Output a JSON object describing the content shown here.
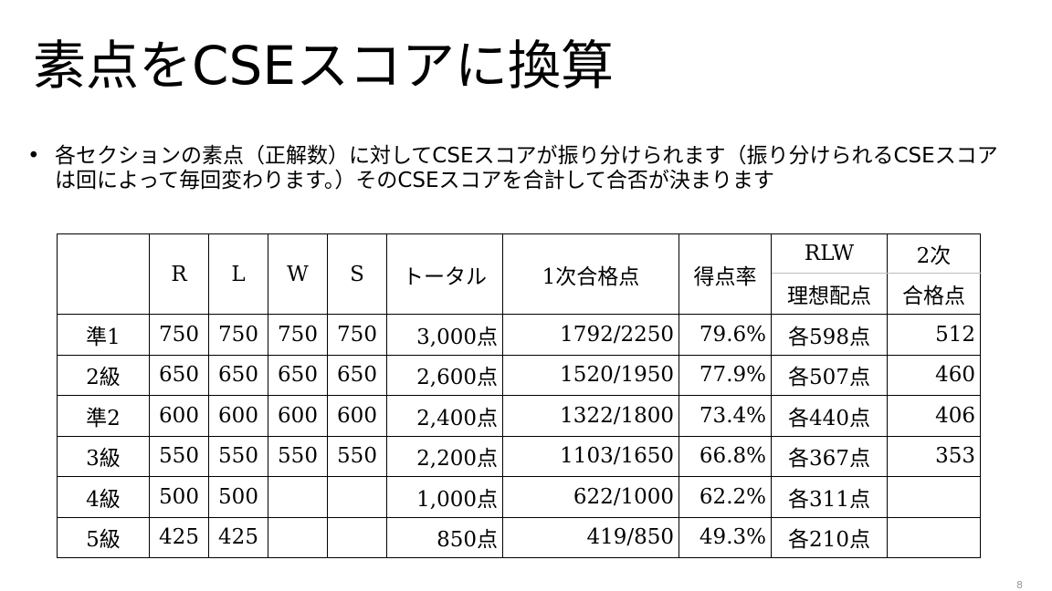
{
  "slide": {
    "title": "素点をCSEスコアに換算",
    "bullet_marker": "•",
    "bullet_text": "各セクションの素点（正解数）に対してCSEスコアが振り分けられます（振り分けられるCSEスコアは回によって毎回変わります。）そのCSEスコアを合計して合否が決まります",
    "page_number": "8"
  },
  "table": {
    "headers": {
      "blank": "",
      "r": "R",
      "l": "L",
      "w": "W",
      "s": "S",
      "total": "トータル",
      "first_pass": "1次合格点",
      "rate": "得点率",
      "rlw_top": "RLW",
      "rlw_bottom": "理想配点",
      "second_top": "2次",
      "second_bottom": "合格点"
    },
    "rows": [
      {
        "grade": "準1",
        "r": "750",
        "l": "750",
        "w": "750",
        "s": "750",
        "total": "3,000点",
        "first_pass": "1792/2250",
        "rate": "79.6%",
        "ideal": "各598点",
        "second_pass": "512"
      },
      {
        "grade": "2級",
        "r": "650",
        "l": "650",
        "w": "650",
        "s": "650",
        "total": "2,600点",
        "first_pass": "1520/1950",
        "rate": "77.9%",
        "ideal": "各507点",
        "second_pass": "460"
      },
      {
        "grade": "準2",
        "r": "600",
        "l": "600",
        "w": "600",
        "s": "600",
        "total": "2,400点",
        "first_pass": "1322/1800",
        "rate": "73.4%",
        "ideal": "各440点",
        "second_pass": "406"
      },
      {
        "grade": "3級",
        "r": "550",
        "l": "550",
        "w": "550",
        "s": "550",
        "total": "2,200点",
        "first_pass": "1103/1650",
        "rate": "66.8%",
        "ideal": "各367点",
        "second_pass": "353"
      },
      {
        "grade": "4級",
        "r": "500",
        "l": "500",
        "w": "",
        "s": "",
        "total": "1,000点",
        "first_pass": "622/1000",
        "rate": "62.2%",
        "ideal": "各311点",
        "second_pass": ""
      },
      {
        "grade": "5級",
        "r": "425",
        "l": "425",
        "w": "",
        "s": "",
        "total": "850点",
        "first_pass": "419/850",
        "rate": "49.3%",
        "ideal": "各210点",
        "second_pass": ""
      }
    ]
  }
}
